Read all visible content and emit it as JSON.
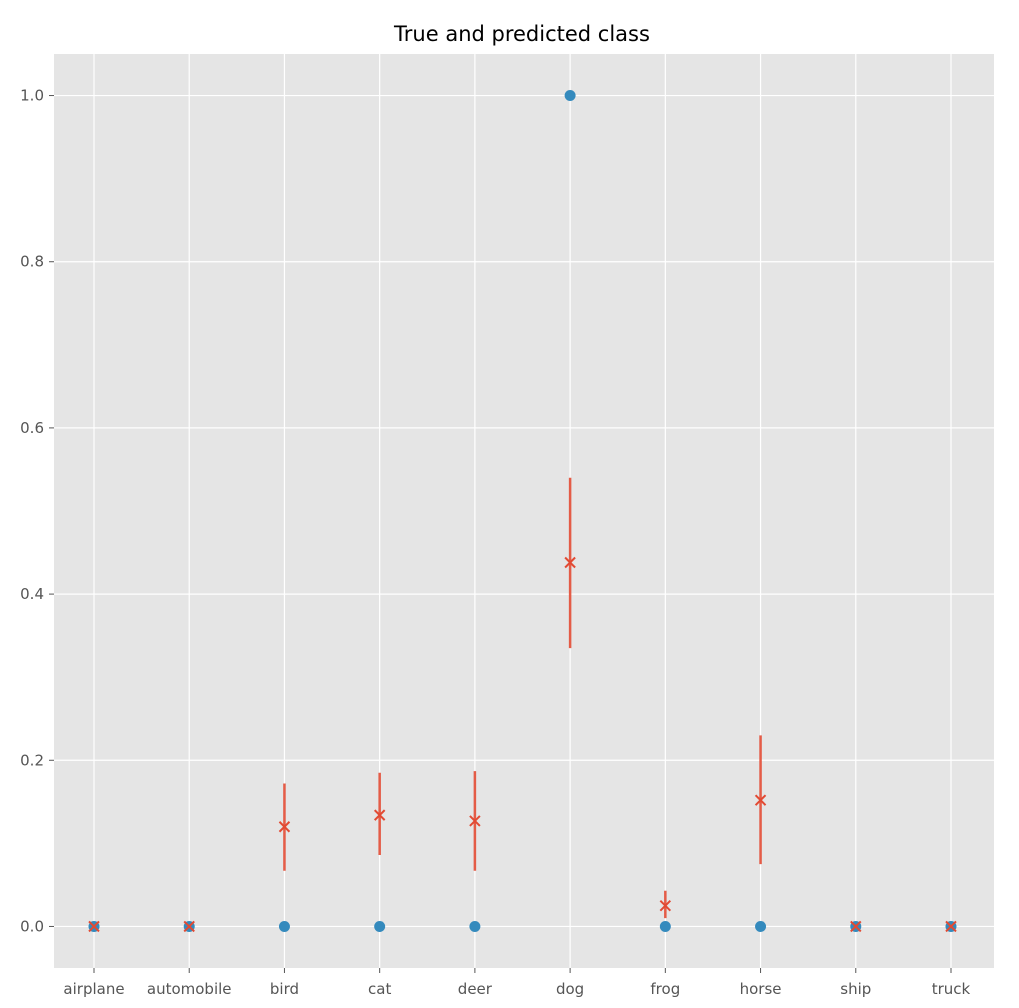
{
  "chart_data": {
    "type": "scatter",
    "title": "True and predicted class",
    "xlabel": "",
    "ylabel": "",
    "categories": [
      "airplane",
      "automobile",
      "bird",
      "cat",
      "deer",
      "dog",
      "frog",
      "horse",
      "ship",
      "truck"
    ],
    "ylim": [
      -0.05,
      1.05
    ],
    "yticks": [
      0.0,
      0.2,
      0.4,
      0.6,
      0.8,
      1.0
    ],
    "ytick_labels": [
      "0.0",
      "0.2",
      "0.4",
      "0.6",
      "0.8",
      "1.0"
    ],
    "grid": true,
    "series": [
      {
        "marker": "x",
        "color": "#E24A33",
        "values": [
          0.0,
          0.0,
          0.12,
          0.134,
          0.127,
          0.438,
          0.025,
          0.152,
          0.0,
          0.0
        ],
        "error_low": [
          0.0,
          0.0,
          0.067,
          0.086,
          0.067,
          0.335,
          0.01,
          0.075,
          0.0,
          0.0
        ],
        "error_high": [
          0.003,
          0.003,
          0.172,
          0.185,
          0.187,
          0.54,
          0.043,
          0.23,
          0.003,
          0.003
        ]
      },
      {
        "marker": "o",
        "color": "#348ABD",
        "values": [
          0,
          0,
          0,
          0,
          0,
          1,
          0,
          0,
          0,
          0
        ]
      }
    ]
  },
  "colors": {
    "background": "#E5E5E5",
    "grid": "#FFFFFF",
    "predicted": "#E24A33",
    "true": "#348ABD"
  }
}
